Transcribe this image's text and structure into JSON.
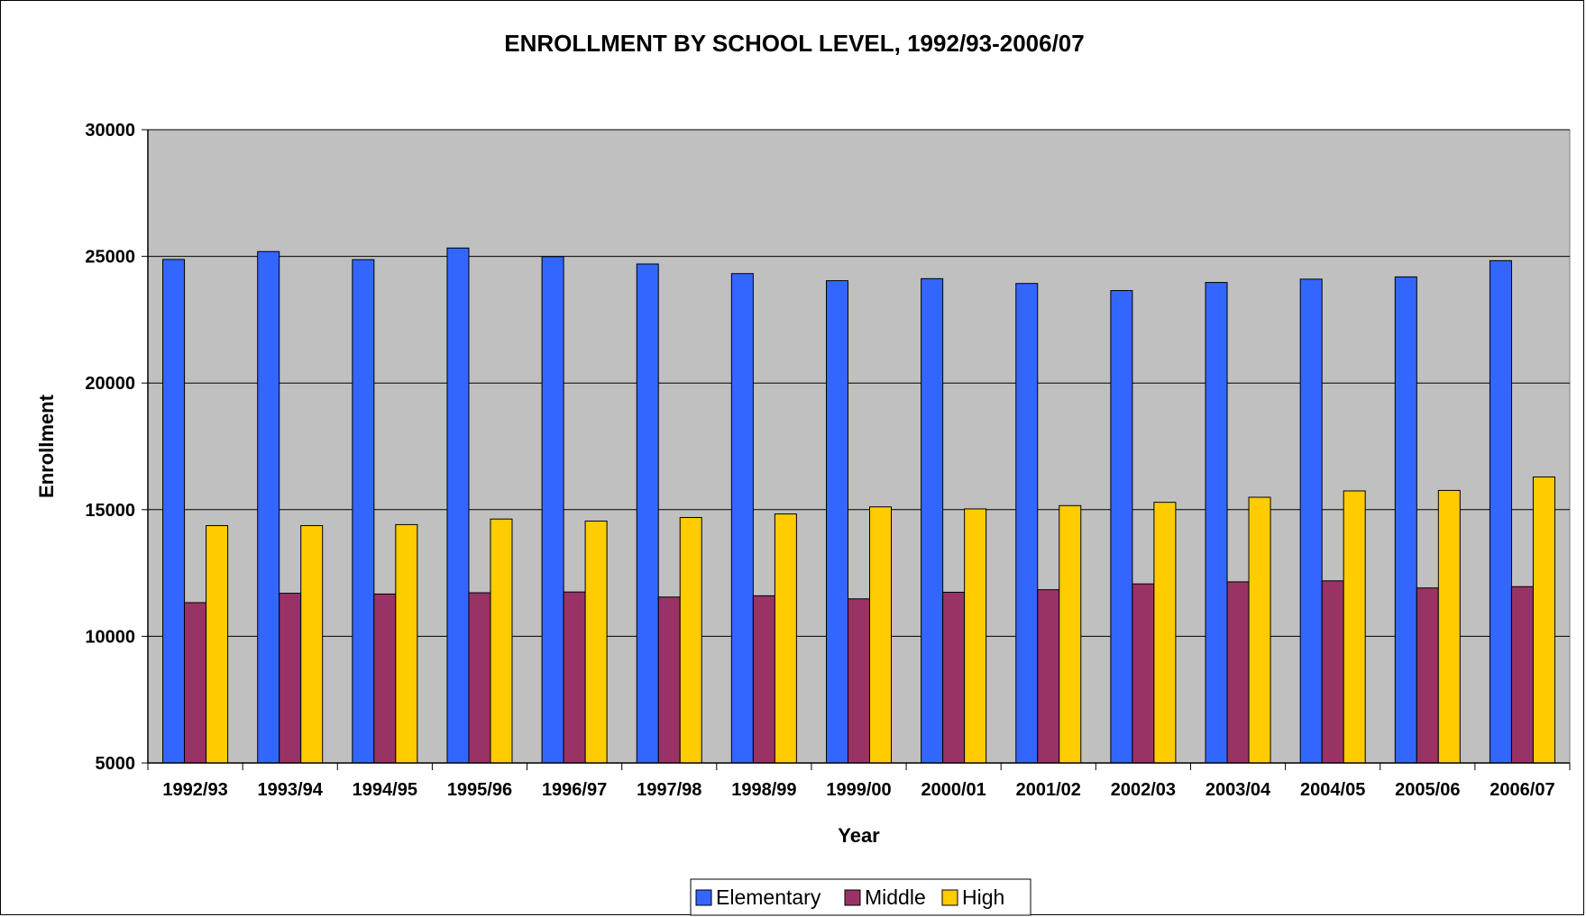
{
  "chart_data": {
    "type": "bar",
    "title": "ENROLLMENT BY SCHOOL LEVEL, 1992/93-2006/07",
    "xlabel": "Year",
    "ylabel": "Enrollment",
    "ylim": [
      5000,
      30000
    ],
    "yticks": [
      "5000",
      "10000",
      "15000",
      "20000",
      "25000",
      "30000"
    ],
    "grid": true,
    "legend_position": "bottom",
    "categories": [
      "1992/93",
      "1993/94",
      "1994/95",
      "1995/96",
      "1996/97",
      "1997/98",
      "1998/99",
      "1999/00",
      "2000/01",
      "2001/02",
      "2002/03",
      "2003/04",
      "2004/05",
      "2005/06",
      "2006/07"
    ],
    "series": [
      {
        "name": "Elementary",
        "color": "#3366ff",
        "values": [
          24880,
          25190,
          24870,
          25330,
          24990,
          24700,
          24320,
          24040,
          24120,
          23930,
          23650,
          23970,
          24100,
          24190,
          24830
        ]
      },
      {
        "name": "Middle",
        "color": "#993366",
        "values": [
          11330,
          11700,
          11670,
          11720,
          11750,
          11550,
          11600,
          11480,
          11740,
          11840,
          12070,
          12150,
          12190,
          11910,
          11960
        ]
      },
      {
        "name": "High",
        "color": "#ffcc00",
        "values": [
          14370,
          14370,
          14410,
          14630,
          14550,
          14690,
          14830,
          15110,
          15030,
          15160,
          15290,
          15490,
          15740,
          15760,
          16290
        ]
      }
    ]
  }
}
